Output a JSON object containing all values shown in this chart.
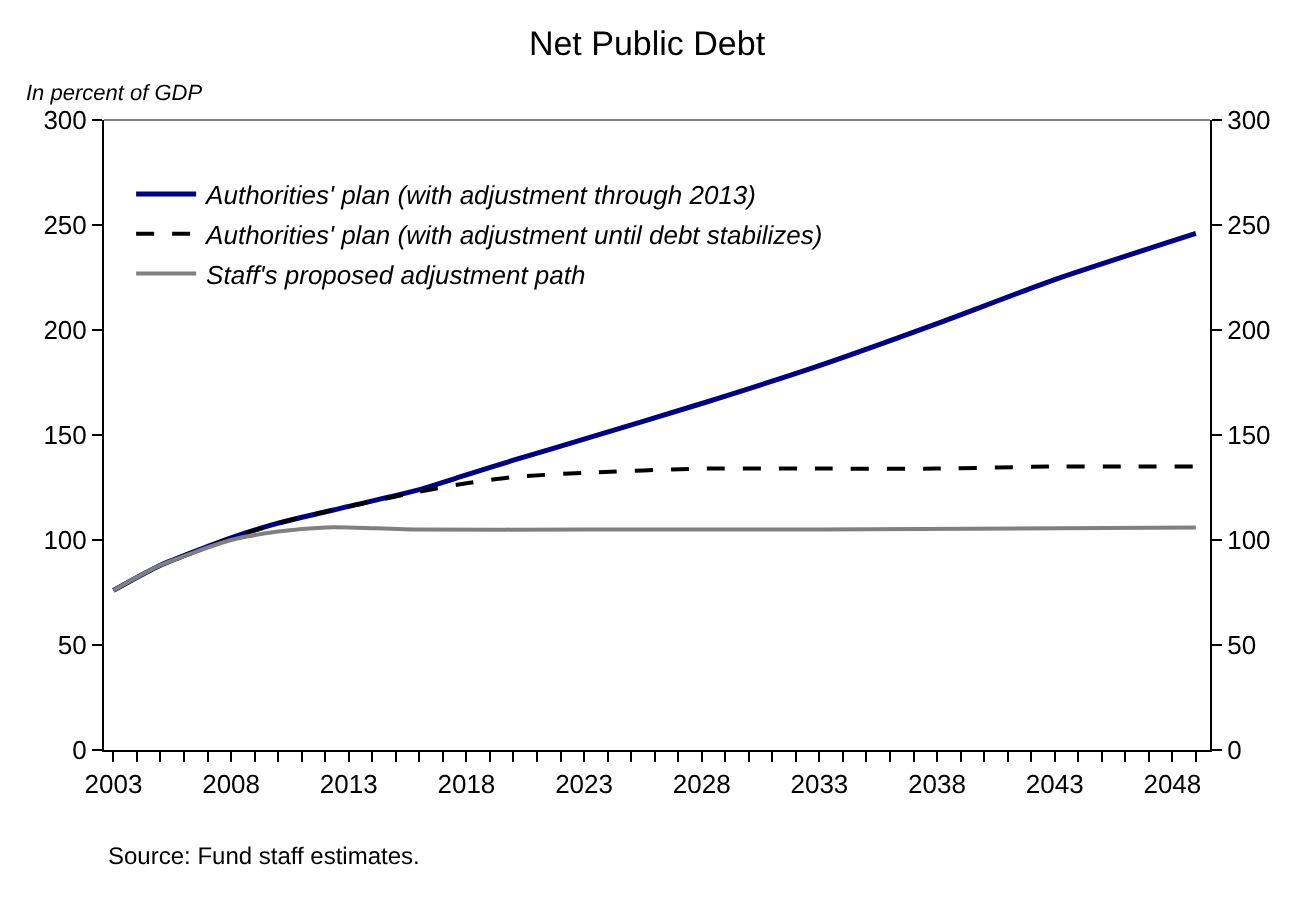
{
  "chart_data": {
    "type": "line",
    "title": "Net Public Debt",
    "ylabel": "In percent of GDP",
    "annotations": [
      "Source: Fund staff estimates."
    ],
    "series": [
      {
        "name": "Authorities' plan (with adjustment through 2013)",
        "color": "#000080",
        "line_style": "solid",
        "x": [
          2003,
          2005,
          2008,
          2010,
          2013,
          2016,
          2018,
          2020,
          2023,
          2028,
          2033,
          2038,
          2043,
          2049
        ],
        "values": [
          76,
          88,
          101,
          108,
          116,
          124,
          131,
          138,
          148,
          165,
          183,
          203,
          224,
          246
        ]
      },
      {
        "name": "Authorities' plan (with adjustment until debt stabilizes)",
        "color": "#000000",
        "line_style": "dashed",
        "x": [
          2003,
          2005,
          2008,
          2010,
          2013,
          2016,
          2018,
          2020,
          2023,
          2028,
          2033,
          2038,
          2043,
          2049
        ],
        "values": [
          76,
          88,
          101,
          108,
          116,
          123,
          127,
          130,
          132,
          134,
          134,
          134,
          135,
          135
        ]
      },
      {
        "name": "Staff's proposed adjustment path",
        "color": "#808080",
        "line_style": "solid",
        "x": [
          2003,
          2005,
          2008,
          2010,
          2012,
          2013,
          2016,
          2023,
          2033,
          2049
        ],
        "values": [
          76,
          88,
          100,
          104,
          106,
          106,
          105,
          105,
          105,
          106
        ]
      }
    ],
    "xlim": [
      2002.6,
      2049.6
    ],
    "xticks": [
      2003,
      {
        "value": 2004,
        "label": null
      },
      {
        "value": 2005,
        "label": null
      },
      {
        "value": 2006,
        "label": null
      },
      {
        "value": 2007,
        "label": null
      },
      2008,
      {
        "value": 2009,
        "label": null
      },
      {
        "value": 2010,
        "label": null
      },
      {
        "value": 2011,
        "label": null
      },
      {
        "value": 2012,
        "label": null
      },
      2013,
      {
        "value": 2014,
        "label": null
      },
      {
        "value": 2015,
        "label": null
      },
      {
        "value": 2016,
        "label": null
      },
      {
        "value": 2017,
        "label": null
      },
      2018,
      {
        "value": 2019,
        "label": null
      },
      {
        "value": 2020,
        "label": null
      },
      {
        "value": 2021,
        "label": null
      },
      {
        "value": 2022,
        "label": null
      },
      2023,
      {
        "value": 2024,
        "label": null
      },
      {
        "value": 2025,
        "label": null
      },
      {
        "value": 2026,
        "label": null
      },
      {
        "value": 2027,
        "label": null
      },
      2028,
      {
        "value": 2029,
        "label": null
      },
      {
        "value": 2030,
        "label": null
      },
      {
        "value": 2031,
        "label": null
      },
      {
        "value": 2032,
        "label": null
      },
      2033,
      {
        "value": 2034,
        "label": null
      },
      {
        "value": 2035,
        "label": null
      },
      {
        "value": 2036,
        "label": null
      },
      {
        "value": 2037,
        "label": null
      },
      2038,
      {
        "value": 2039,
        "label": null
      },
      {
        "value": 2040,
        "label": null
      },
      {
        "value": 2041,
        "label": null
      },
      {
        "value": 2042,
        "label": null
      },
      2043,
      {
        "value": 2044,
        "label": null
      },
      {
        "value": 2045,
        "label": null
      },
      {
        "value": 2046,
        "label": null
      },
      {
        "value": 2047,
        "label": null
      },
      2048,
      {
        "value": 2049,
        "label": null
      }
    ],
    "ylim": [
      0,
      300
    ],
    "yticks": [
      0,
      50,
      100,
      150,
      200,
      250,
      300
    ],
    "y2lim": [
      0,
      300
    ],
    "y2ticks": [
      0,
      50,
      100,
      150,
      200,
      250,
      300
    ],
    "legend": "top left",
    "marker": "none"
  }
}
